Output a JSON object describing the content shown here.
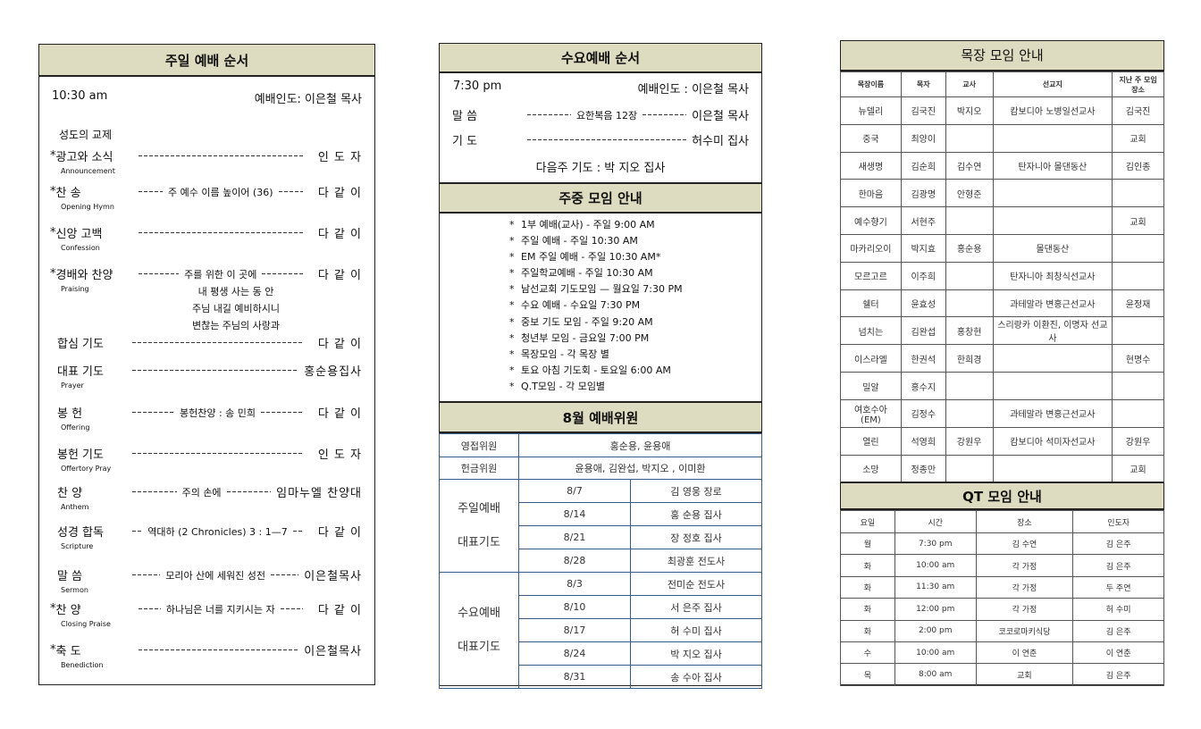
{
  "sunday": {
    "title": "주일 예배 순서",
    "time": "10:30 am",
    "leader": "예배인도: 이은철 목사",
    "fellowship": "성도의 교제",
    "items": [
      {
        "star": true,
        "label": "광고와 소식",
        "mid": "",
        "right": "인 도 자",
        "en": "Announcement"
      },
      {
        "star": true,
        "label": "찬 송",
        "mid": "주 예수 이름 높이어 (36)",
        "right": "다 같 이",
        "en": "Opening Hymn"
      },
      {
        "star": true,
        "label": "신앙 고백",
        "mid": "",
        "right": "다 같 이",
        "en": "Confession"
      },
      {
        "star": true,
        "label": "경배와 찬양",
        "mid": "주를 위한 이 곳에",
        "right": "다 같 이",
        "en": "Praising"
      },
      {
        "star": false,
        "label": "합심 기도",
        "mid": "",
        "right": "다 같 이",
        "en": ""
      },
      {
        "star": false,
        "label": "대표 기도",
        "mid": "",
        "right": "홍순용집사",
        "en": "Prayer"
      },
      {
        "star": false,
        "label": "봉 헌",
        "mid": "봉헌찬양 : 송 민희",
        "right": "다 같 이",
        "en": "Offering"
      },
      {
        "star": false,
        "label": "봉헌 기도",
        "mid": "",
        "right": "인 도 자",
        "en": "Offertory Pray"
      },
      {
        "star": false,
        "label": "찬 양",
        "mid": "주의 손에",
        "right": "임마누엘 찬양대",
        "en": "Anthem"
      },
      {
        "star": false,
        "label": "성경 합독",
        "mid": "역대하 (2 Chronicles) 3 : 1—7",
        "right": "다 같 이",
        "en": "Scripture"
      },
      {
        "star": false,
        "label": "말 씀",
        "mid": "모리아 산에 세워진 성전",
        "right": "이은철목사",
        "en": "Sermon"
      },
      {
        "star": true,
        "label": "찬 양",
        "mid": "하나님은 너를 지키시는 자",
        "right": "다 같 이",
        "en": "Closing Praise"
      },
      {
        "star": true,
        "label": "축 도",
        "mid": "",
        "right": "이은철목사",
        "en": "Benediction"
      }
    ],
    "praise_songs": [
      "내 평생 사는 동 안",
      "주님 내길 예비하시니",
      "변찮는 주님의 사랑과"
    ]
  },
  "wednesday": {
    "title": "수요예배 순서",
    "time": "7:30 pm",
    "leader": "예배인도 : 이은철 목사",
    "items": [
      {
        "label": "말 씀",
        "mid": "요한복음 12장",
        "right": "이은철 목사"
      },
      {
        "label": "기 도",
        "mid": "",
        "right": "허수미 집사"
      }
    ],
    "next": "다음주 기도 : 박 지오 집사"
  },
  "weekly": {
    "title": "주중 모임 안내",
    "items": [
      "1부 예배(교사) - 주일 9:00 AM",
      "주일 예배 - 주일 10:30 AM",
      "EM 주일 예배 - 주일 10:30 AM*",
      "주일학교예배 - 주일 10:30 AM",
      "남선교회 기도모임 — 월요일 7:30 PM",
      "수요 예배 - 수요일 7:30 PM",
      "중보 기도 모임 - 주일 9:20 AM",
      "청년부 모임 - 금요일 7:00 PM",
      "목장모임 - 각 목장 별",
      "토요 아침 기도회 - 토요일 6:00 AM",
      "Q.T모임 - 각 모임별"
    ]
  },
  "august": {
    "title": "8월 예배위원",
    "usher_label": "영접위원",
    "usher": "홍순용, 윤용애",
    "offering_label": "헌금위원",
    "offering": "윤용애, 김완섭, 박지오 , 이미환",
    "sunday_label": [
      "주일예배",
      "대표기도"
    ],
    "sunday": [
      [
        "8/7",
        "김 영웅 장로"
      ],
      [
        "8/14",
        "홍 순용 집사"
      ],
      [
        "8/21",
        "장 정호 집사"
      ],
      [
        "8/28",
        "최광훈 전도사"
      ]
    ],
    "wed_label": [
      "수요예배",
      "대표기도"
    ],
    "wed": [
      [
        "8/3",
        "전미순 전도사"
      ],
      [
        "8/10",
        "서 은주 집사"
      ],
      [
        "8/17",
        "허 수미 집사"
      ],
      [
        "8/24",
        "박 지오 집사"
      ],
      [
        "8/31",
        "송 수아 집사"
      ]
    ]
  },
  "cell": {
    "title": "목장 모임 안내",
    "headers": [
      "목장이름",
      "목자",
      "교사",
      "선교지",
      "지난 주 모임 장소"
    ],
    "rows": [
      [
        "뉴델리",
        "김국진",
        "박지오",
        "캄보디아 노병일선교사",
        "김국진"
      ],
      [
        "중국",
        "최양이",
        "",
        "",
        "교회"
      ],
      [
        "새생명",
        "김순희",
        "김수연",
        "탄자니아 몰댄동산",
        "김인종"
      ],
      [
        "한마음",
        "김광명",
        "안형준",
        "",
        ""
      ],
      [
        "예수향기",
        "서현주",
        "",
        "",
        "교회"
      ],
      [
        "마카리오이",
        "박지효",
        "홍순용",
        "몰댄동산",
        ""
      ],
      [
        "모르고르",
        "이주희",
        "",
        "탄자니아 최창식선교사",
        ""
      ],
      [
        "쉘터",
        "윤효성",
        "",
        "과테말라 변홍근선교사",
        "윤정재"
      ],
      [
        "넘치는",
        "김완섭",
        "홍창현",
        "스리랑카 이환진, 이명자 선교사",
        ""
      ],
      [
        "이스라엘",
        "한권석",
        "한희경",
        "",
        "현명수"
      ],
      [
        "밀알",
        "홍수지",
        "",
        "",
        ""
      ],
      [
        "여호수아 (EM)",
        "김정수",
        "",
        "과테말라 변홍근선교사",
        ""
      ],
      [
        "열린",
        "석영희",
        "강원우",
        "캄보디아 석미자선교사",
        "강원우"
      ],
      [
        "소망",
        "정종만",
        "",
        "",
        "교회"
      ]
    ]
  },
  "qt": {
    "title": "QT 모임 안내",
    "headers": [
      "요일",
      "시간",
      "장소",
      "인도자"
    ],
    "rows": [
      [
        "월",
        "7:30 pm",
        "김 수연",
        "김 은주"
      ],
      [
        "화",
        "10:00 am",
        "각 가정",
        "김 은주"
      ],
      [
        "화",
        "11:30 am",
        "각 가정",
        "두 주연"
      ],
      [
        "화",
        "12:00 pm",
        "각 가정",
        "허 수미"
      ],
      [
        "화",
        "2:00 pm",
        "코코로마키식당",
        "김 은주"
      ],
      [
        "수",
        "10:00 am",
        "이 연춘",
        "이 연춘"
      ],
      [
        "목",
        "8:00 am",
        "교회",
        "김 은주"
      ]
    ]
  }
}
